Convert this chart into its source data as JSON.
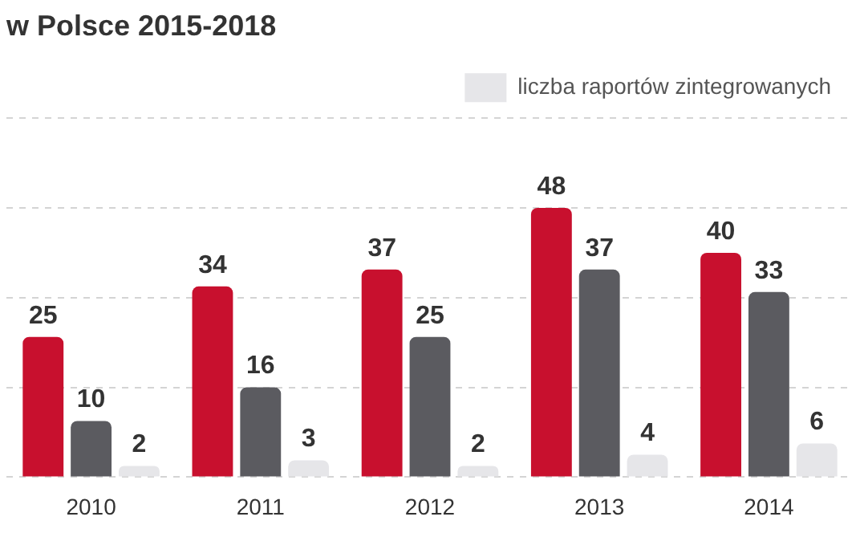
{
  "chart_data": {
    "type": "bar",
    "title": "w Polsce 2015-2018",
    "categories": [
      "2010",
      "2011",
      "2012",
      "2013",
      "2014"
    ],
    "series": [
      {
        "color": "#c8102e",
        "values": [
          25,
          34,
          37,
          48,
          40
        ]
      },
      {
        "color": "#5b5b60",
        "values": [
          10,
          16,
          25,
          37,
          33
        ]
      },
      {
        "name": "liczba raportów zintegrowanych",
        "color": "#e6e6e9",
        "values": [
          2,
          3,
          2,
          4,
          6
        ]
      }
    ],
    "ylim": [
      0,
      64
    ],
    "yticks": [
      {
        "value": 0,
        "label": null
      },
      {
        "value": 16,
        "label": null
      },
      {
        "value": 32,
        "label": null
      },
      {
        "value": 48,
        "label": null
      },
      {
        "value": 64,
        "label": null
      }
    ],
    "tick_labels": "x",
    "grid": "y",
    "legend": "top right",
    "data_labels": true
  }
}
